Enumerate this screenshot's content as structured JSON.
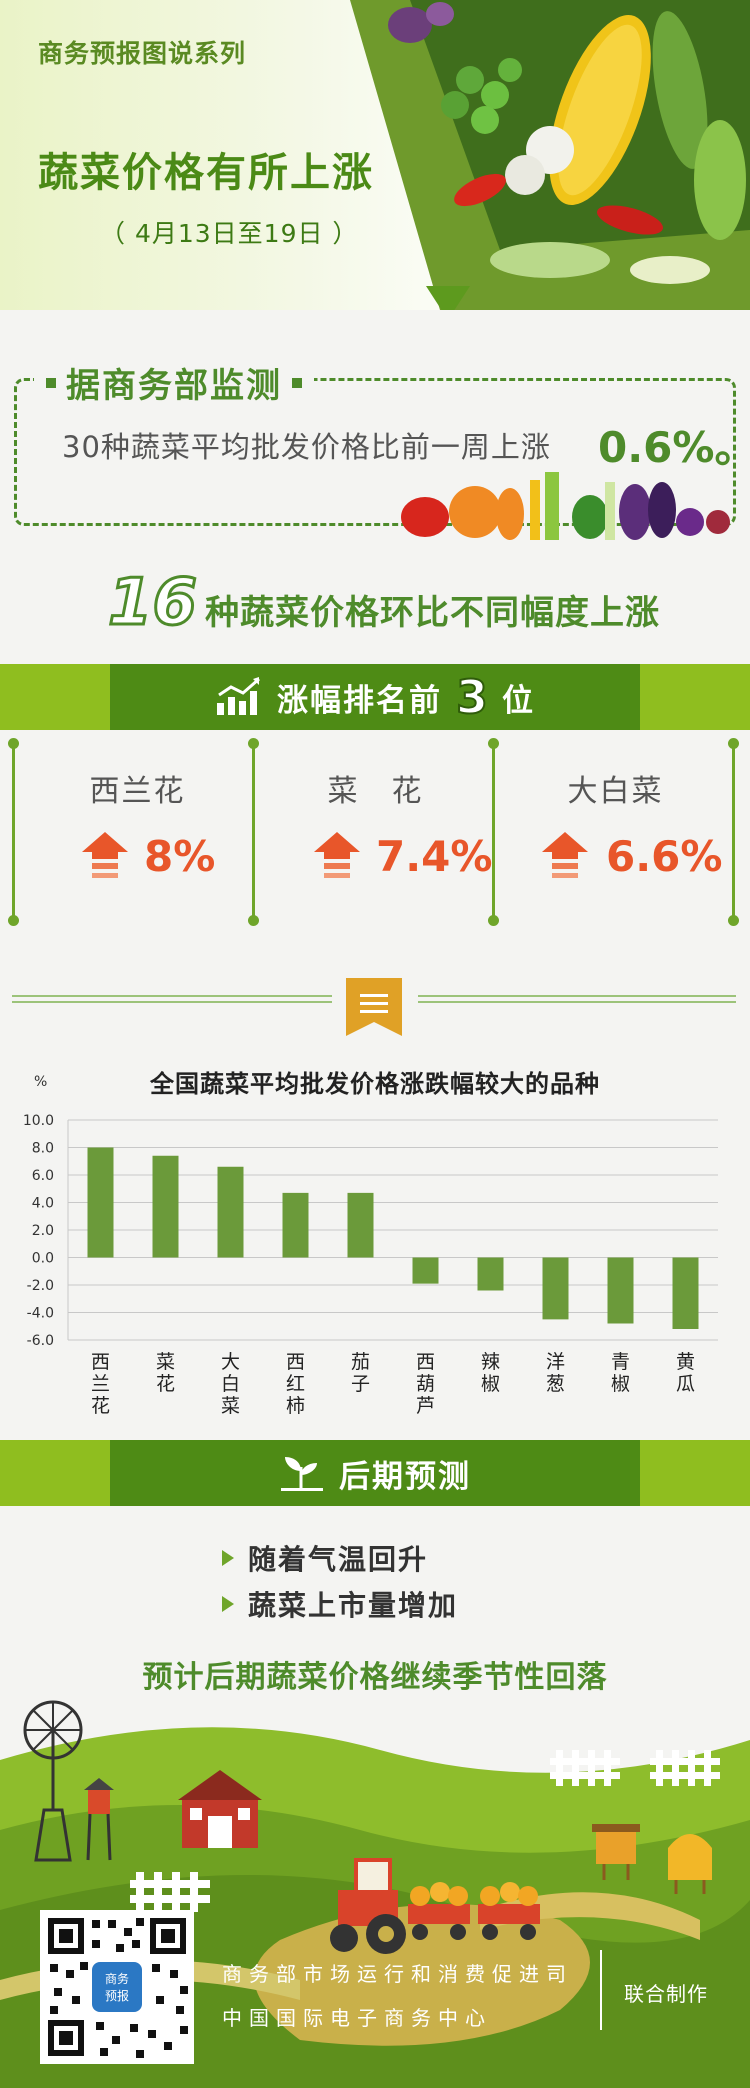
{
  "header": {
    "series": "商务预报图说系列",
    "title": "蔬菜价格有所上涨",
    "date_range": "（ 4月13日至19日 ）"
  },
  "monitor": {
    "title": "据商务部监测",
    "text": "30种蔬菜平均批发价格比前一周上涨",
    "value": "0.6%。"
  },
  "summary": {
    "count": "16",
    "text": "种蔬菜价格环比不同幅度上涨"
  },
  "top3_banner": {
    "prefix": "涨幅排名前",
    "num": "3",
    "suffix": "位"
  },
  "top3": [
    {
      "name": "西兰花",
      "pct": "8%"
    },
    {
      "name": "菜　花",
      "pct": "7.4%"
    },
    {
      "name": "大白菜",
      "pct": "6.6%"
    }
  ],
  "chart_data": {
    "type": "bar",
    "title": "全国蔬菜平均批发价格涨跌幅较大的品种",
    "ylabel": "%",
    "categories": [
      "西兰花",
      "菜花",
      "大白菜",
      "西红柿",
      "茄子",
      "西葫芦",
      "辣椒",
      "洋葱",
      "青椒",
      "黄瓜"
    ],
    "values": [
      8.0,
      7.4,
      6.6,
      4.7,
      4.7,
      -1.9,
      -2.4,
      -4.5,
      -4.8,
      -5.2
    ],
    "yticks": [
      "10.0",
      "8.0",
      "6.0",
      "4.0",
      "2.0",
      "0.0",
      "-2.0",
      "-4.0",
      "-6.0"
    ],
    "ylim": [
      -6,
      10
    ],
    "grid": true,
    "bar_color": "#6b9a3a"
  },
  "forecast_banner": {
    "title": "后期预测"
  },
  "forecast": {
    "items": [
      "随着气温回升",
      "蔬菜上市量增加"
    ],
    "conclusion": "预计后期蔬菜价格继续季节性回落"
  },
  "footer": {
    "qr_badge": [
      "商务",
      "预报"
    ],
    "org1": "商务部市场运行和消费促进司",
    "org2": "中国国际电子商务中心",
    "joint": "联合制作"
  },
  "colors": {
    "primary_green": "#4e8b15",
    "light_green": "#8fbe1f",
    "accent_orange": "#e8562a"
  }
}
